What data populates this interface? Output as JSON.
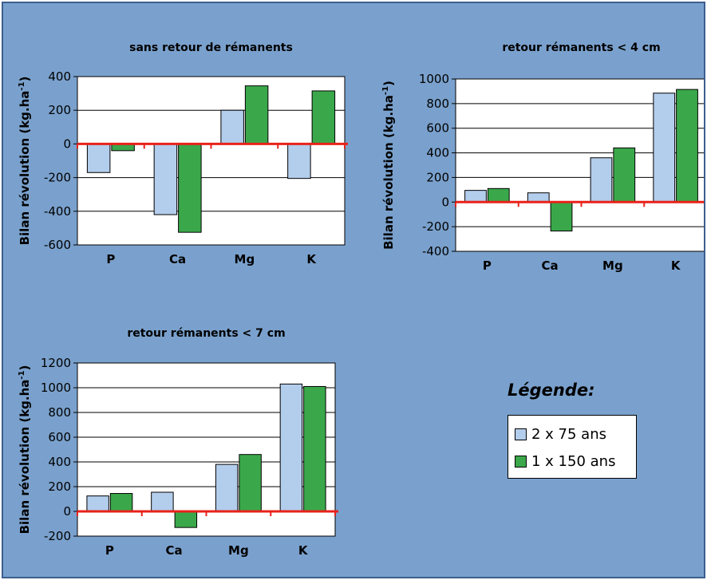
{
  "colors": {
    "background": "#7aa1cd",
    "series_a": "#b3cdec",
    "series_b": "#3aa84a",
    "zero_line": "#e8221a"
  },
  "legend": {
    "title": "Légende:",
    "items": [
      {
        "label": "2 x 75 ans",
        "color": "#b3cdec"
      },
      {
        "label": "1 x 150 ans",
        "color": "#3aa84a"
      }
    ]
  },
  "chart_data": [
    {
      "type": "bar",
      "title": "sans retour de rémanents",
      "ylabel_main": "Bilan révolution (kg.ha",
      "ylabel_sup": "-1",
      "ylabel_close": ")",
      "categories": [
        "P",
        "Ca",
        "Mg",
        "K"
      ],
      "series": [
        {
          "name": "2 x 75 ans",
          "values": [
            -170,
            -420,
            200,
            -205
          ]
        },
        {
          "name": "1 x 150 ans",
          "values": [
            -40,
            -525,
            345,
            315
          ]
        }
      ],
      "ylim": [
        -600,
        400
      ],
      "yticks": [
        400,
        200,
        0,
        -200,
        -400,
        -600
      ],
      "grid": true
    },
    {
      "type": "bar",
      "title": "retour rémanents < 4 cm",
      "ylabel_main": "Bilan révolution (kg.ha",
      "ylabel_sup": "-1",
      "ylabel_close": ")",
      "categories": [
        "P",
        "Ca",
        "Mg",
        "K"
      ],
      "series": [
        {
          "name": "2 x 75 ans",
          "values": [
            95,
            75,
            360,
            885
          ]
        },
        {
          "name": "1 x 150 ans",
          "values": [
            110,
            -235,
            440,
            915
          ]
        }
      ],
      "ylim": [
        -400,
        1000
      ],
      "yticks": [
        1000,
        800,
        600,
        400,
        200,
        0,
        -200,
        -400
      ],
      "grid": true
    },
    {
      "type": "bar",
      "title": "retour rémanents < 7 cm",
      "ylabel_main": "Bilan révolution (kg.ha",
      "ylabel_sup": "-1",
      "ylabel_close": ")",
      "categories": [
        "P",
        "Ca",
        "Mg",
        "K"
      ],
      "series": [
        {
          "name": "2 x 75 ans",
          "values": [
            125,
            155,
            380,
            1030
          ]
        },
        {
          "name": "1 x 150 ans",
          "values": [
            145,
            -130,
            460,
            1010
          ]
        }
      ],
      "ylim": [
        -200,
        1200
      ],
      "yticks": [
        1200,
        1000,
        800,
        600,
        400,
        200,
        0,
        -200
      ],
      "grid": true
    }
  ]
}
